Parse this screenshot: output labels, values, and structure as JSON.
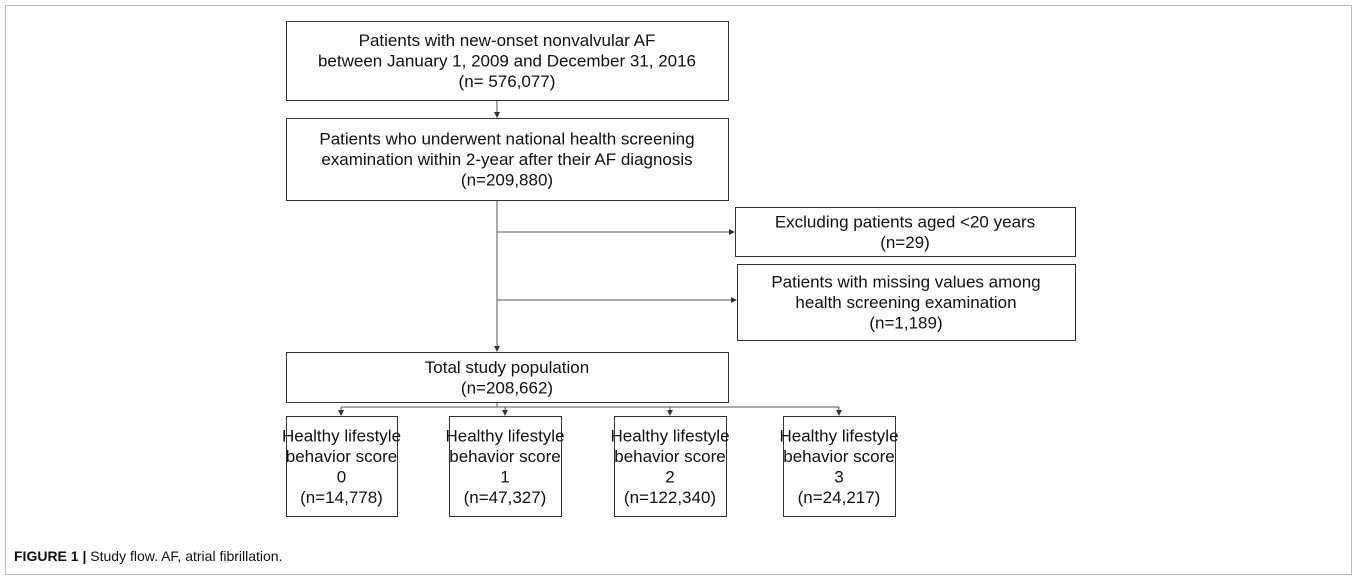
{
  "nodes": [
    {
      "lines": [
        "Patients with new-onset nonvalvular AF",
        "between January 1, 2009 and December 31, 2016",
        "(n= 576,077)"
      ]
    },
    {
      "lines": [
        "Patients who underwent national health screening",
        "examination within 2-year after their AF diagnosis",
        "(n=209,880)"
      ]
    },
    {
      "lines": [
        "Excluding patients aged <20 years",
        "(n=29)"
      ]
    },
    {
      "lines": [
        "Patients with missing values among",
        "health screening examination",
        "(n=1,189)"
      ]
    },
    {
      "lines": [
        "Total study population",
        "(n=208,662)"
      ]
    },
    {
      "lines": [
        "Healthy lifestyle",
        "behavior score",
        "0",
        "(n=14,778)"
      ]
    },
    {
      "lines": [
        "Healthy lifestyle",
        "behavior score",
        "1",
        "(n=47,327)"
      ]
    },
    {
      "lines": [
        "Healthy lifestyle",
        "behavior score",
        "2",
        "(n=122,340)"
      ]
    },
    {
      "lines": [
        "Healthy lifestyle",
        "behavior score",
        "3",
        "(n=24,217)"
      ]
    }
  ],
  "caption": {
    "label": "FIGURE 1 |",
    "text": "Study flow. AF, atrial fibrillation."
  }
}
